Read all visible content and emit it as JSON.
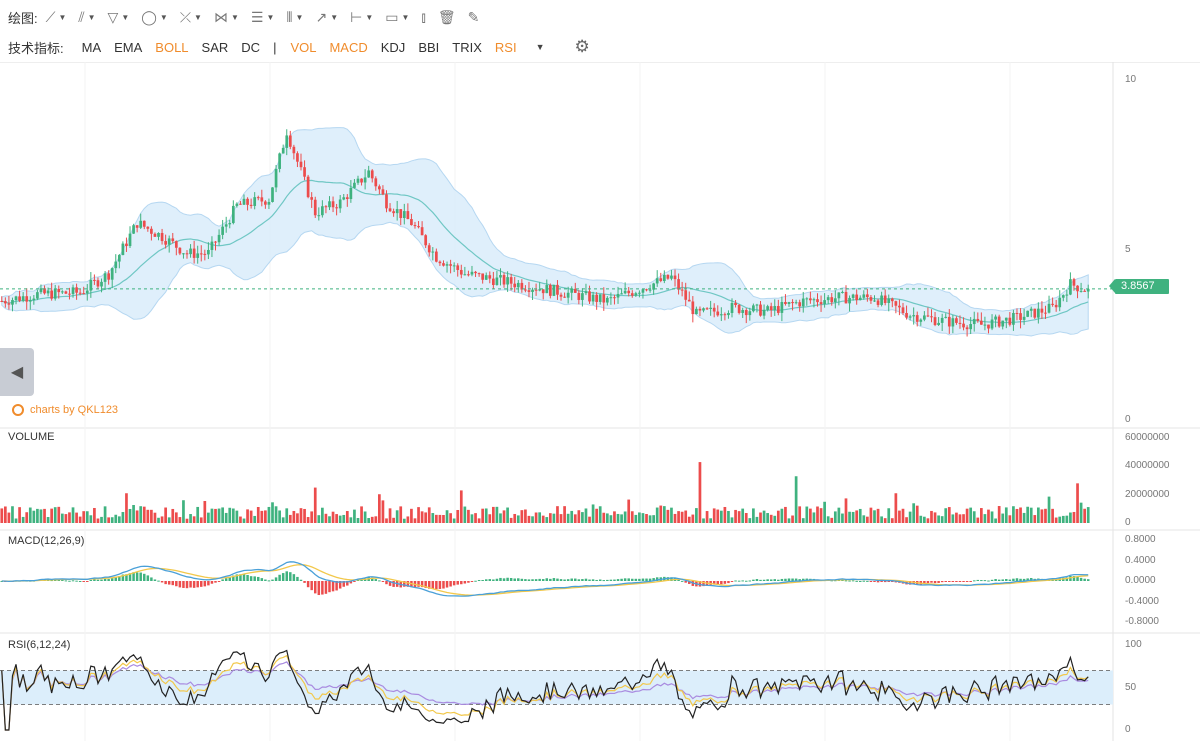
{
  "toolbar": {
    "draw_label": "绘图:",
    "draw_tools": [
      {
        "icon": "line-tool-icon",
        "glyph": "⟋",
        "dropdown": true
      },
      {
        "icon": "multi-line-tool-icon",
        "glyph": "⫽",
        "dropdown": true
      },
      {
        "icon": "triangle-tool-icon",
        "glyph": "▽",
        "dropdown": true
      },
      {
        "icon": "ellipse-tool-icon",
        "glyph": "◯",
        "dropdown": true
      },
      {
        "icon": "fork-tool-icon",
        "glyph": "⤫",
        "dropdown": true
      },
      {
        "icon": "pattern-tool-icon",
        "glyph": "⋈",
        "dropdown": true
      },
      {
        "icon": "fibonacci-tool-icon",
        "glyph": "☰",
        "dropdown": true
      },
      {
        "icon": "gann-tool-icon",
        "glyph": "⦀",
        "dropdown": true
      },
      {
        "icon": "arrow-tool-icon",
        "glyph": "↗",
        "dropdown": true
      },
      {
        "icon": "measure-tool-icon",
        "glyph": "⊢",
        "dropdown": true
      },
      {
        "icon": "comment-tool-icon",
        "glyph": "▭",
        "dropdown": true
      },
      {
        "icon": "bar-pattern-icon",
        "glyph": "⫾",
        "dropdown": false
      },
      {
        "icon": "trash-icon",
        "glyph": "🗑",
        "dropdown": false
      },
      {
        "icon": "brush-icon",
        "glyph": "✎",
        "dropdown": false
      }
    ],
    "indicator_label": "技术指标:",
    "main_indicators": [
      {
        "label": "MA",
        "active": false
      },
      {
        "label": "EMA",
        "active": false
      },
      {
        "label": "BOLL",
        "active": true
      },
      {
        "label": "SAR",
        "active": false
      },
      {
        "label": "DC",
        "active": false
      }
    ],
    "separator": "|",
    "sub_indicators": [
      {
        "label": "VOL",
        "active": true
      },
      {
        "label": "MACD",
        "active": true
      },
      {
        "label": "KDJ",
        "active": false
      },
      {
        "label": "BBI",
        "active": false
      },
      {
        "label": "TRIX",
        "active": false
      },
      {
        "label": "RSI",
        "active": true
      }
    ]
  },
  "watermark": "charts by QKL123",
  "colors": {
    "up": "#3fb27f",
    "down": "#ec4c4c",
    "boll_fill": "#dceefb",
    "boll_mid": "#6fc7c4",
    "macd_dif": "#4aa0d8",
    "macd_dea": "#f2c84b",
    "rsi6": "#222222",
    "rsi12": "#f2c84b",
    "rsi24": "#a98be0",
    "rsi_band": "#dceefb"
  },
  "chart_data": [
    {
      "type": "candlestick",
      "name": "price",
      "ylim": [
        0,
        10
      ],
      "y_ticks": [
        "10",
        "5",
        "0"
      ],
      "last_price": "3.8567",
      "overlay": "BOLL",
      "anchors": [
        [
          0,
          3.5
        ],
        [
          10,
          3.7
        ],
        [
          22,
          3.75
        ],
        [
          30,
          4.3
        ],
        [
          38,
          5.8
        ],
        [
          45,
          5.4
        ],
        [
          52,
          4.9
        ],
        [
          58,
          4.9
        ],
        [
          66,
          6.3
        ],
        [
          75,
          6.5
        ],
        [
          80,
          8.5
        ],
        [
          88,
          6.1
        ],
        [
          95,
          6.4
        ],
        [
          103,
          7.3
        ],
        [
          108,
          6.4
        ],
        [
          115,
          5.8
        ],
        [
          122,
          4.8
        ],
        [
          130,
          4.3
        ],
        [
          140,
          4.1
        ],
        [
          150,
          3.9
        ],
        [
          160,
          3.7
        ],
        [
          170,
          3.5
        ],
        [
          180,
          3.9
        ],
        [
          188,
          4.2
        ],
        [
          195,
          3.1
        ],
        [
          205,
          3.3
        ],
        [
          215,
          3.2
        ],
        [
          225,
          3.5
        ],
        [
          235,
          3.6
        ],
        [
          245,
          3.6
        ],
        [
          255,
          3.1
        ],
        [
          265,
          2.9
        ],
        [
          275,
          2.8
        ],
        [
          285,
          3.0
        ],
        [
          295,
          3.3
        ],
        [
          300,
          4.0
        ],
        [
          304,
          3.85
        ]
      ]
    },
    {
      "type": "bar",
      "name": "VOLUME",
      "ylim": [
        0,
        60000000
      ],
      "y_ticks": [
        "60000000",
        "40000000",
        "20000000",
        "0"
      ],
      "spikes": [
        [
          196,
          43000000
        ],
        [
          223,
          33000000
        ],
        [
          88,
          25000000
        ],
        [
          129,
          23000000
        ],
        [
          251,
          21000000
        ],
        [
          35,
          21000000
        ],
        [
          302,
          28000000
        ]
      ]
    },
    {
      "type": "line",
      "name": "MACD(12,26,9)",
      "ylim": [
        -0.9,
        0.9
      ],
      "y_ticks": [
        "0.8000",
        "0.4000",
        "0.0000",
        "-0.4000",
        "-0.8000"
      ]
    },
    {
      "type": "line",
      "name": "RSI(6,12,24)",
      "ylim": [
        0,
        100
      ],
      "y_ticks": [
        "100",
        "50",
        "0"
      ],
      "bands": [
        30,
        70
      ]
    }
  ]
}
